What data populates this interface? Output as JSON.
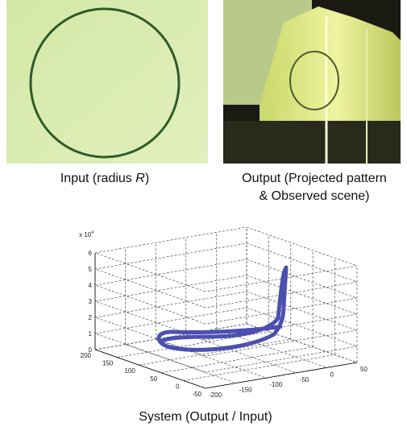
{
  "figure": {
    "input_caption": {
      "before": "Input (radius ",
      "variable": "R",
      "after": ")"
    },
    "output_caption": [
      "Output (Projected pattern",
      "& Observed scene)"
    ],
    "plot": {
      "z_scale": {
        "base": "x 10",
        "exponent": "4"
      },
      "zticks": [
        0,
        1,
        2,
        3,
        4,
        5,
        6
      ],
      "yticks": [
        200,
        150,
        100,
        50,
        0,
        -50
      ],
      "xticks": [
        -200,
        -150,
        -100,
        -50,
        0,
        50
      ]
    },
    "system_caption": "System (Output / Input)"
  }
}
